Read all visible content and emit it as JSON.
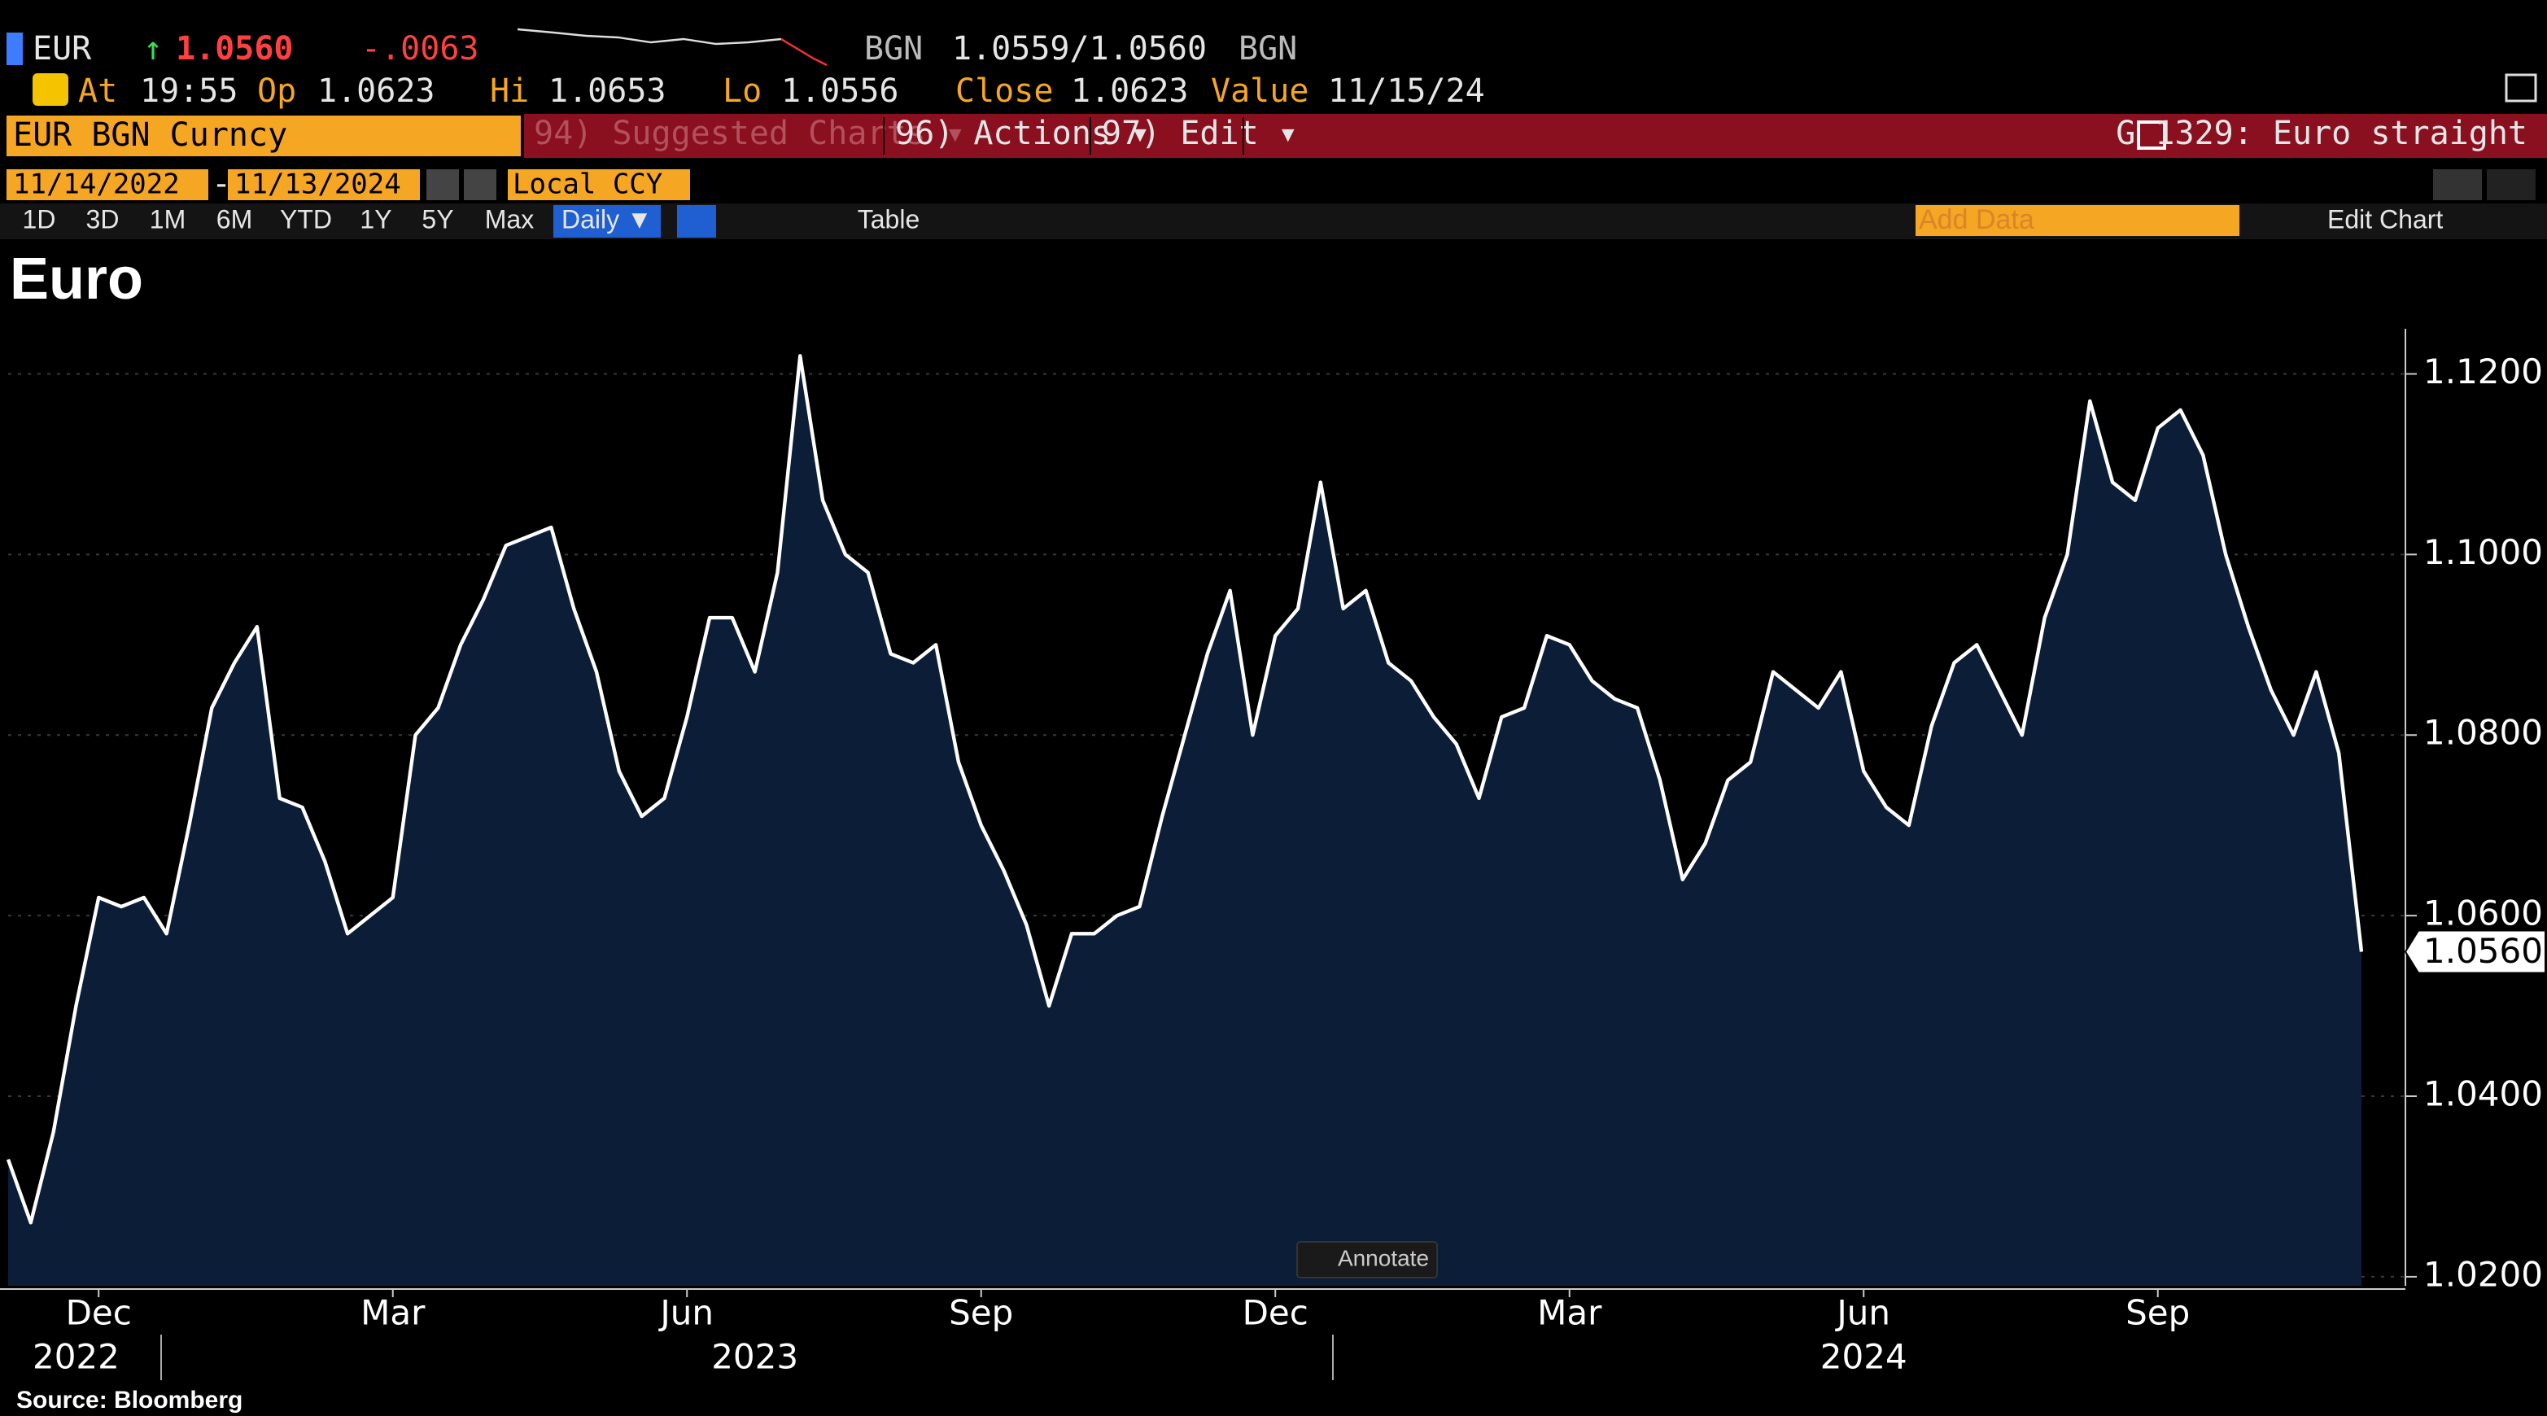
{
  "header": {
    "ticker": "EUR",
    "arrow": "↑",
    "price": "1.0560",
    "change": "-.0063",
    "ccy1": "BGN",
    "bid_ask": "1.0559/1.0560",
    "ccy2": "BGN",
    "at_label": "At",
    "at": "19:55",
    "op_label": "Op",
    "op": "1.0623",
    "hi_label": "Hi",
    "hi": "1.0653",
    "lo_label": "Lo",
    "lo": "1.0556",
    "close_label": "Close",
    "close": "1.0623",
    "value_label": "Value",
    "value": "11/15/24",
    "security": "EUR BGN Curncy",
    "suggested": "94) Suggested Charts ▾",
    "actions": "96) Actions ▾",
    "edit": "97) Edit ▾",
    "chart_name": "G 1329: Euro straight",
    "start_date": "11/14/2022",
    "dash": "-",
    "end_date": "11/13/2024",
    "ccy_mode": "Local CCY",
    "periods": [
      "1D",
      "3D",
      "1M",
      "6M",
      "YTD",
      "1Y",
      "5Y",
      "Max"
    ],
    "frequency": "Daily ▼",
    "table": "Table",
    "add_data": "Add Data",
    "edit_chart": "Edit Chart"
  },
  "chart_data": {
    "type": "area",
    "title": "Euro",
    "color": "#ffffff",
    "fill": "#0c1d38",
    "values": [
      1.033,
      1.026,
      1.036,
      1.05,
      1.062,
      1.061,
      1.062,
      1.058,
      1.07,
      1.083,
      1.088,
      1.092,
      1.073,
      1.072,
      1.066,
      1.058,
      1.06,
      1.062,
      1.08,
      1.083,
      1.09,
      1.095,
      1.101,
      1.102,
      1.103,
      1.094,
      1.087,
      1.076,
      1.071,
      1.073,
      1.082,
      1.093,
      1.093,
      1.087,
      1.098,
      1.122,
      1.106,
      1.1,
      1.098,
      1.089,
      1.088,
      1.09,
      1.077,
      1.07,
      1.065,
      1.059,
      1.05,
      1.058,
      1.058,
      1.06,
      1.061,
      1.071,
      1.08,
      1.089,
      1.096,
      1.08,
      1.091,
      1.094,
      1.108,
      1.094,
      1.096,
      1.088,
      1.086,
      1.082,
      1.079,
      1.073,
      1.082,
      1.083,
      1.091,
      1.09,
      1.086,
      1.084,
      1.083,
      1.075,
      1.064,
      1.068,
      1.075,
      1.077,
      1.087,
      1.085,
      1.083,
      1.087,
      1.076,
      1.072,
      1.07,
      1.081,
      1.088,
      1.09,
      1.085,
      1.08,
      1.093,
      1.1,
      1.117,
      1.108,
      1.106,
      1.114,
      1.116,
      1.111,
      1.1,
      1.092,
      1.085,
      1.08,
      1.087,
      1.078,
      1.056
    ],
    "value_labels": [
      null,
      null,
      null,
      null,
      null,
      null,
      null,
      null,
      null,
      null,
      null,
      null,
      null,
      null,
      null,
      null,
      null,
      null,
      null,
      null,
      null,
      null,
      null,
      null,
      null,
      null,
      null,
      null,
      null,
      null,
      null,
      null,
      null,
      null,
      null,
      null,
      null,
      null,
      null,
      null,
      null,
      null,
      null,
      null,
      null,
      null,
      null,
      null,
      null,
      null,
      null,
      null,
      null,
      null,
      null,
      null,
      null,
      null,
      null,
      null,
      null,
      null,
      null,
      null,
      null,
      null,
      null,
      null,
      null,
      null,
      null,
      null,
      null,
      null,
      null,
      null,
      null,
      null,
      null,
      null,
      null,
      null,
      null,
      null,
      null,
      null,
      null,
      null,
      null,
      null,
      null,
      null,
      null,
      null,
      null,
      null,
      null,
      null,
      null,
      null,
      null,
      null,
      null,
      null,
      "1.0560"
    ],
    "categories": [
      null,
      null,
      null,
      null,
      "Dec",
      null,
      null,
      null,
      null,
      null,
      null,
      null,
      null,
      null,
      null,
      null,
      null,
      "Mar",
      null,
      null,
      null,
      null,
      null,
      null,
      null,
      null,
      null,
      null,
      null,
      null,
      "Jun",
      null,
      null,
      null,
      null,
      null,
      null,
      null,
      null,
      null,
      null,
      null,
      null,
      "Sep",
      null,
      null,
      null,
      null,
      null,
      null,
      null,
      null,
      null,
      null,
      null,
      null,
      "Dec",
      null,
      null,
      null,
      null,
      null,
      null,
      null,
      null,
      null,
      null,
      null,
      null,
      "Mar",
      null,
      null,
      null,
      null,
      null,
      null,
      null,
      null,
      null,
      null,
      null,
      null,
      "Jun",
      null,
      null,
      null,
      null,
      null,
      null,
      null,
      null,
      null,
      null,
      null,
      null,
      "Sep",
      null,
      null,
      null,
      null,
      null,
      null,
      null,
      null,
      null
    ],
    "year_categories": [
      null,
      null,
      null,
      "2022",
      null,
      null,
      null,
      null,
      null,
      null,
      null,
      null,
      null,
      null,
      null,
      null,
      null,
      null,
      null,
      null,
      null,
      null,
      null,
      null,
      null,
      null,
      null,
      null,
      null,
      null,
      null,
      null,
      null,
      "2023",
      null,
      null,
      null,
      null,
      null,
      null,
      null,
      null,
      null,
      null,
      null,
      null,
      null,
      null,
      null,
      null,
      null,
      null,
      null,
      null,
      null,
      null,
      null,
      null,
      null,
      null,
      null,
      null,
      null,
      null,
      null,
      null,
      null,
      null,
      null,
      null,
      null,
      null,
      null,
      null,
      null,
      null,
      null,
      null,
      null,
      null,
      null,
      null,
      "2024",
      null,
      null,
      null,
      null,
      null,
      null,
      null,
      null,
      null,
      null,
      null,
      null,
      null,
      null,
      null,
      null,
      null,
      null,
      null,
      null,
      null,
      null
    ],
    "ylim": [
      1.019,
      1.125
    ],
    "yticks": [
      {
        "value": 1.02,
        "label": "1.0200"
      },
      {
        "value": 1.04,
        "label": "1.0400"
      },
      {
        "value": 1.06,
        "label": "1.0600"
      },
      {
        "value": 1.08,
        "label": "1.0800"
      },
      {
        "value": 1.1,
        "label": "1.1000"
      },
      {
        "value": 1.12,
        "label": "1.1200"
      }
    ],
    "grid": true,
    "annotate": "Annotate",
    "source": "Source: Bloomberg"
  }
}
